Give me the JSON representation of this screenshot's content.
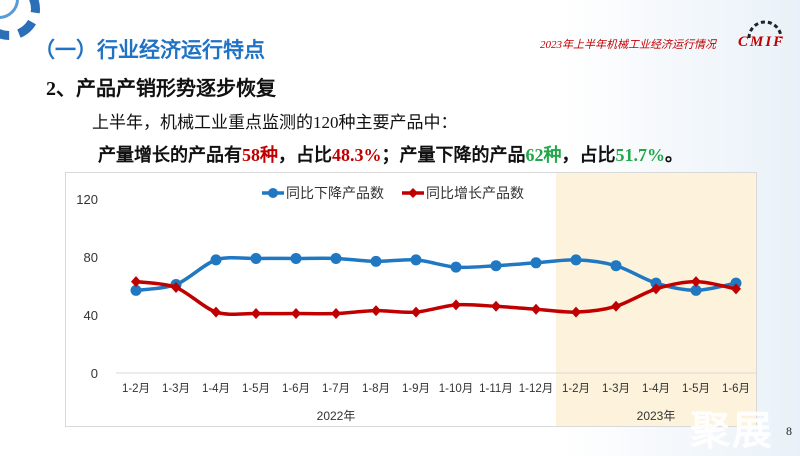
{
  "header": {
    "section_title": "（一）行业经济运行特点",
    "report_note": "2023年上半年机械工业经济运行情况",
    "logo_text": "CMIF"
  },
  "content": {
    "subtitle": "2、产品产销形势逐步恢复",
    "line1": "上半年，机械工业重点监测的120种主要产品中：",
    "line2": {
      "p1": "产量增长的产品有",
      "v1": "58种",
      "p2": "，占比",
      "v2": "48.3%",
      "p3": "；产量下降的产品",
      "v3": "62种",
      "p4": "，占比",
      "v4": "51.7%",
      "p5": "。"
    }
  },
  "chart_data": {
    "type": "line",
    "categories": [
      "1-2月",
      "1-3月",
      "1-4月",
      "1-5月",
      "1-6月",
      "1-7月",
      "1-8月",
      "1-9月",
      "1-10月",
      "1-11月",
      "1-12月",
      "1-2月",
      "1-3月",
      "1-4月",
      "1-5月",
      "1-6月"
    ],
    "groups": [
      {
        "label": "2022年",
        "from": 0,
        "to": 10
      },
      {
        "label": "2023年",
        "from": 11,
        "to": 15,
        "highlight": "#fdf3dc"
      }
    ],
    "yticks": [
      0,
      40,
      80,
      120
    ],
    "ylim": [
      0,
      120
    ],
    "legend_position": "top",
    "grid": false,
    "series": [
      {
        "name": "同比下降产品数",
        "color": "#1f78c1",
        "marker": "circle",
        "values": [
          57,
          61,
          78,
          79,
          79,
          79,
          77,
          78,
          73,
          74,
          76,
          78,
          74,
          62,
          57,
          62
        ]
      },
      {
        "name": "同比增长产品数",
        "color": "#c00000",
        "marker": "diamond",
        "values": [
          63,
          59,
          42,
          41,
          41,
          41,
          43,
          42,
          47,
          46,
          44,
          42,
          46,
          58,
          63,
          58
        ]
      }
    ]
  },
  "footer": {
    "page_number": "8",
    "watermark": "聚展"
  }
}
